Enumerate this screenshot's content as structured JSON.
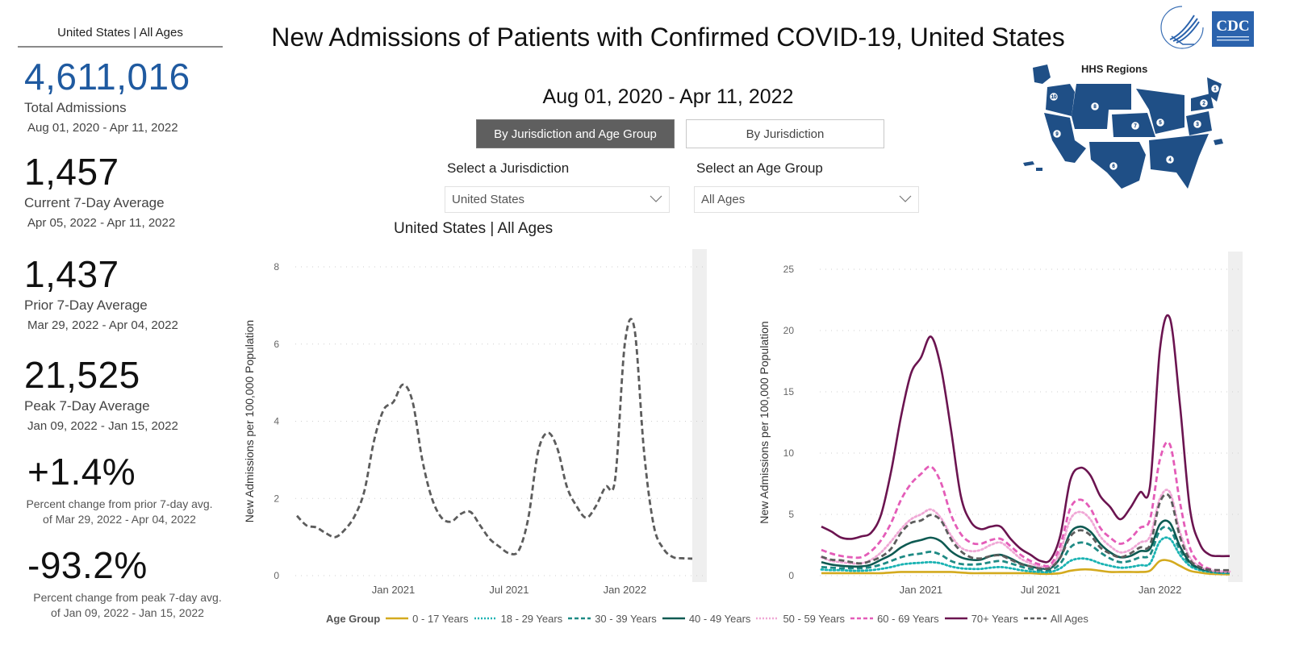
{
  "kpi_panel": {
    "header": "United States | All Ages",
    "total": {
      "value": "4,611,016",
      "label": "Total Admissions",
      "range": "Aug 01, 2020 - Apr 11, 2022"
    },
    "current_avg": {
      "value": "1,457",
      "label": "Current 7-Day Average",
      "range": "Apr 05, 2022 - Apr 11, 2022"
    },
    "prior_avg": {
      "value": "1,437",
      "label": "Prior 7-Day Average",
      "range": "Mar 29, 2022 - Apr 04, 2022"
    },
    "peak_avg": {
      "value": "21,525",
      "label": "Peak 7-Day Average",
      "range": "Jan 09, 2022 - Jan 15, 2022"
    },
    "pct_prior": {
      "value": "+1.4%",
      "note": "Percent change from prior 7-day avg. of Mar 29, 2022 - Apr 04, 2022"
    },
    "pct_peak": {
      "value": "-93.2%",
      "note": "Percent change from peak 7-day avg. of Jan 09, 2022 - Jan 15, 2022"
    }
  },
  "header": {
    "title": "New Admissions of Patients with Confirmed COVID-19, United States",
    "date_range": "Aug 01, 2020 - Apr 11, 2022"
  },
  "toggles": {
    "active": "By Jurisdiction and Age Group",
    "inactive": "By Jurisdiction"
  },
  "filters": {
    "jurisdiction": {
      "label": "Select a Jurisdiction",
      "value": "United States"
    },
    "age_group": {
      "label": "Select an Age Group",
      "value": "All Ages"
    }
  },
  "logos": {
    "hhs": "HHS seal",
    "cdc": "CDC"
  },
  "map": {
    "title": "HHS Regions",
    "regions": [
      "1",
      "2",
      "3",
      "4",
      "5",
      "6",
      "7",
      "8",
      "9",
      "10"
    ]
  },
  "colors": {
    "kpi_blue": "#1f5aa0",
    "age_0_17": "#d4aa1e",
    "age_18_29": "#1ab3b3",
    "age_30_39": "#1e8a84",
    "age_40_49": "#0e5a52",
    "age_50_59": "#f0a8d6",
    "age_60_69": "#e45cb8",
    "age_70_plus": "#6b1450",
    "all_ages": "#5c5c5c"
  },
  "legend": {
    "title": "Age Group",
    "items": [
      {
        "label": "0 - 17 Years",
        "key": "age_0_17",
        "style": "solid"
      },
      {
        "label": "18 - 29 Years",
        "key": "age_18_29",
        "style": "dotted"
      },
      {
        "label": "30 - 39 Years",
        "key": "age_30_39",
        "style": "dashed"
      },
      {
        "label": "40 - 49 Years",
        "key": "age_40_49",
        "style": "solid"
      },
      {
        "label": "50 - 59 Years",
        "key": "age_50_59",
        "style": "dotted"
      },
      {
        "label": "60 - 69 Years",
        "key": "age_60_69",
        "style": "dashed"
      },
      {
        "label": "70+ Years",
        "key": "age_70_plus",
        "style": "solid"
      },
      {
        "label": "All Ages",
        "key": "all_ages",
        "style": "dashed"
      }
    ]
  },
  "chart_data": [
    {
      "type": "line",
      "title": "United States | All Ages",
      "xlabel": "",
      "ylabel": "New Admissions per 100,000 Population",
      "ylim": [
        0,
        8
      ],
      "yticks": [
        0,
        2,
        4,
        6,
        8
      ],
      "xticks": [
        "Jan 2021",
        "Jul 2021",
        "Jan 2022"
      ],
      "grid": true,
      "x_months": [
        0,
        0.5,
        1,
        1.5,
        2,
        2.5,
        3,
        3.5,
        4,
        4.5,
        5,
        5.5,
        6,
        6.5,
        7,
        7.5,
        8,
        8.5,
        9,
        9.5,
        10,
        10.5,
        11,
        11.5,
        12,
        12.5,
        13,
        13.5,
        14,
        14.5,
        15,
        15.5,
        16,
        16.5,
        17,
        17.5,
        18,
        18.5,
        19,
        19.5,
        20,
        20.5
      ],
      "series": [
        {
          "name": "All Ages",
          "key": "all_ages",
          "style": "dashed",
          "values": [
            1.55,
            1.3,
            1.25,
            1.1,
            1.0,
            1.2,
            1.55,
            2.2,
            3.5,
            4.3,
            4.5,
            4.95,
            4.5,
            3.0,
            2.0,
            1.5,
            1.4,
            1.6,
            1.65,
            1.3,
            0.95,
            0.75,
            0.58,
            0.65,
            1.5,
            3.2,
            3.7,
            3.3,
            2.3,
            1.8,
            1.5,
            1.8,
            2.3,
            2.5,
            6.0,
            6.4,
            3.2,
            1.3,
            0.7,
            0.48,
            0.45,
            0.44
          ]
        }
      ]
    },
    {
      "type": "line",
      "title": "",
      "xlabel": "",
      "ylabel": "New Admissions per 100,000 Population",
      "ylim": [
        0,
        25
      ],
      "yticks": [
        0,
        5,
        10,
        15,
        20,
        25
      ],
      "xticks": [
        "Jan 2021",
        "Jul 2021",
        "Jan 2022"
      ],
      "grid": true,
      "legend": "bottom",
      "x_months": [
        0,
        0.5,
        1,
        1.5,
        2,
        2.5,
        3,
        3.5,
        4,
        4.5,
        5,
        5.5,
        6,
        6.5,
        7,
        7.5,
        8,
        8.5,
        9,
        9.5,
        10,
        10.5,
        11,
        11.5,
        12,
        12.5,
        13,
        13.5,
        14,
        14.5,
        15,
        15.5,
        16,
        16.5,
        17,
        17.5,
        18,
        18.5,
        19,
        19.5,
        20,
        20.5
      ],
      "series": [
        {
          "name": "0 - 17 Years",
          "key": "age_0_17",
          "style": "solid",
          "values": [
            0.2,
            0.2,
            0.2,
            0.2,
            0.2,
            0.2,
            0.2,
            0.25,
            0.3,
            0.3,
            0.3,
            0.3,
            0.3,
            0.3,
            0.25,
            0.2,
            0.2,
            0.2,
            0.2,
            0.2,
            0.2,
            0.2,
            0.15,
            0.15,
            0.2,
            0.4,
            0.5,
            0.5,
            0.4,
            0.3,
            0.3,
            0.3,
            0.3,
            0.4,
            1.2,
            1.2,
            0.8,
            0.4,
            0.25,
            0.15,
            0.12,
            0.1
          ]
        },
        {
          "name": "18 - 29 Years",
          "key": "age_18_29",
          "style": "dotted",
          "values": [
            0.5,
            0.45,
            0.45,
            0.4,
            0.4,
            0.45,
            0.55,
            0.7,
            0.9,
            1.0,
            1.05,
            1.1,
            1.0,
            0.75,
            0.6,
            0.55,
            0.55,
            0.65,
            0.7,
            0.6,
            0.45,
            0.35,
            0.3,
            0.3,
            0.6,
            1.2,
            1.4,
            1.3,
            1.0,
            0.8,
            0.65,
            0.7,
            0.85,
            1.0,
            2.8,
            3.0,
            1.7,
            0.8,
            0.45,
            0.3,
            0.22,
            0.2
          ]
        },
        {
          "name": "30 - 39 Years",
          "key": "age_30_39",
          "style": "dashed",
          "values": [
            0.7,
            0.65,
            0.6,
            0.6,
            0.6,
            0.7,
            0.9,
            1.2,
            1.5,
            1.7,
            1.8,
            1.95,
            1.7,
            1.2,
            0.95,
            0.9,
            0.95,
            1.1,
            1.2,
            1.0,
            0.75,
            0.55,
            0.45,
            0.45,
            1.0,
            2.3,
            2.7,
            2.5,
            1.9,
            1.4,
            1.1,
            1.2,
            1.5,
            1.7,
            3.7,
            3.8,
            2.1,
            1.0,
            0.55,
            0.35,
            0.27,
            0.25
          ]
        },
        {
          "name": "40 - 49 Years",
          "key": "age_40_49",
          "style": "solid",
          "values": [
            1.1,
            0.9,
            0.8,
            0.75,
            0.75,
            0.9,
            1.3,
            1.7,
            2.3,
            2.7,
            2.9,
            3.1,
            2.8,
            2.0,
            1.5,
            1.3,
            1.3,
            1.6,
            1.7,
            1.4,
            1.0,
            0.75,
            0.6,
            0.6,
            1.5,
            3.5,
            4.0,
            3.6,
            2.6,
            1.9,
            1.5,
            1.6,
            2.0,
            2.2,
            4.2,
            4.3,
            2.4,
            1.1,
            0.6,
            0.4,
            0.32,
            0.3
          ]
        },
        {
          "name": "50 - 59 Years",
          "key": "age_50_59",
          "style": "dotted",
          "values": [
            1.5,
            1.2,
            1.1,
            1.0,
            1.0,
            1.3,
            1.9,
            2.8,
            3.8,
            4.6,
            5.0,
            5.4,
            4.7,
            3.3,
            2.3,
            2.0,
            2.1,
            2.5,
            2.7,
            2.1,
            1.4,
            1.0,
            0.75,
            0.75,
            2.0,
            4.6,
            5.2,
            4.6,
            3.2,
            2.4,
            1.9,
            2.1,
            2.7,
            3.2,
            6.3,
            6.8,
            3.6,
            1.5,
            0.75,
            0.45,
            0.35,
            0.33
          ]
        },
        {
          "name": "60 - 69 Years",
          "key": "age_60_69",
          "style": "dashed",
          "values": [
            2.1,
            1.8,
            1.6,
            1.5,
            1.5,
            2.0,
            2.9,
            4.3,
            6.2,
            7.5,
            8.3,
            8.9,
            7.6,
            5.0,
            3.4,
            2.7,
            2.6,
            2.9,
            3.0,
            2.4,
            1.7,
            1.2,
            0.9,
            0.9,
            2.5,
            5.5,
            6.2,
            5.5,
            3.9,
            3.1,
            2.6,
            3.0,
            3.9,
            4.6,
            9.5,
            10.7,
            6.0,
            2.3,
            1.0,
            0.55,
            0.42,
            0.4
          ]
        },
        {
          "name": "70+ Years",
          "key": "age_70_plus",
          "style": "solid",
          "values": [
            4.0,
            3.6,
            3.1,
            3.0,
            3.2,
            3.5,
            5.0,
            8.5,
            13.0,
            16.5,
            17.8,
            19.5,
            17.0,
            12.0,
            6.5,
            4.4,
            3.8,
            4.0,
            4.0,
            3.0,
            2.2,
            1.7,
            1.2,
            1.3,
            3.3,
            7.8,
            8.8,
            8.2,
            6.5,
            5.6,
            4.6,
            5.5,
            6.8,
            7.3,
            18.5,
            21.0,
            14.0,
            5.5,
            2.6,
            1.7,
            1.6,
            1.6
          ]
        },
        {
          "name": "All Ages",
          "key": "all_ages",
          "style": "dashed",
          "values": [
            1.55,
            1.3,
            1.25,
            1.1,
            1.0,
            1.2,
            1.55,
            2.2,
            3.5,
            4.3,
            4.5,
            4.95,
            4.5,
            3.0,
            2.0,
            1.5,
            1.4,
            1.6,
            1.65,
            1.3,
            0.95,
            0.75,
            0.58,
            0.65,
            1.5,
            3.2,
            3.7,
            3.3,
            2.3,
            1.8,
            1.5,
            1.8,
            2.3,
            2.5,
            6.0,
            6.4,
            3.2,
            1.3,
            0.7,
            0.48,
            0.45,
            0.44
          ]
        }
      ]
    }
  ]
}
